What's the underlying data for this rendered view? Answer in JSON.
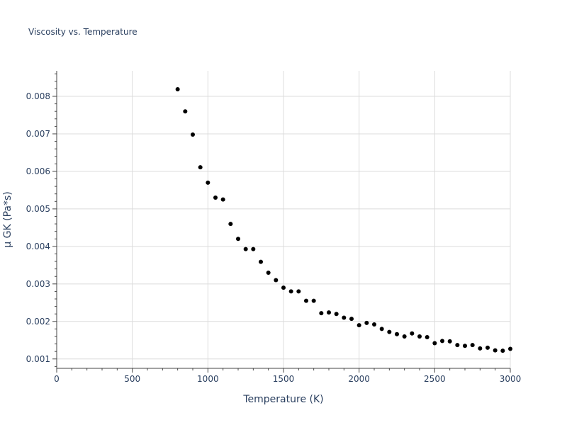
{
  "chart_data": {
    "type": "scatter",
    "title": "Viscosity vs. Temperature",
    "xlabel": "Temperature (K)",
    "ylabel": "μ GK (Pa*s)",
    "xlim": [
      0,
      3000
    ],
    "ylim": [
      0.00075,
      0.00868
    ],
    "xticks": [
      "0",
      "500",
      "1000",
      "1500",
      "2000",
      "2500",
      "3000"
    ],
    "yticks": [
      "0.001",
      "0.002",
      "0.003",
      "0.004",
      "0.005",
      "0.006",
      "0.007",
      "0.008"
    ],
    "grid": true,
    "marker_color": "#000000",
    "series": [
      {
        "x": [
          800,
          850,
          900,
          950,
          1000,
          1050,
          1100,
          1150,
          1200,
          1250,
          1300,
          1350,
          1400,
          1450,
          1500,
          1550,
          1600,
          1650,
          1700,
          1750,
          1800,
          1850,
          1900,
          1950,
          2000,
          2050,
          2100,
          2150,
          2200,
          2250,
          2300,
          2350,
          2400,
          2450,
          2500,
          2550,
          2600,
          2650,
          2700,
          2750,
          2800,
          2850,
          2900,
          2950,
          3000
        ],
        "y": [
          0.00819,
          0.0076,
          0.00698,
          0.00611,
          0.0057,
          0.0053,
          0.00525,
          0.0046,
          0.0042,
          0.00393,
          0.00393,
          0.00359,
          0.0033,
          0.0031,
          0.0029,
          0.0028,
          0.0028,
          0.00255,
          0.00255,
          0.00222,
          0.00224,
          0.0022,
          0.0021,
          0.00207,
          0.0019,
          0.00196,
          0.00192,
          0.0018,
          0.00172,
          0.00166,
          0.0016,
          0.00168,
          0.0016,
          0.00158,
          0.00142,
          0.00148,
          0.00147,
          0.00137,
          0.00135,
          0.00137,
          0.00128,
          0.0013,
          0.00123,
          0.00122,
          0.00127
        ]
      }
    ]
  }
}
